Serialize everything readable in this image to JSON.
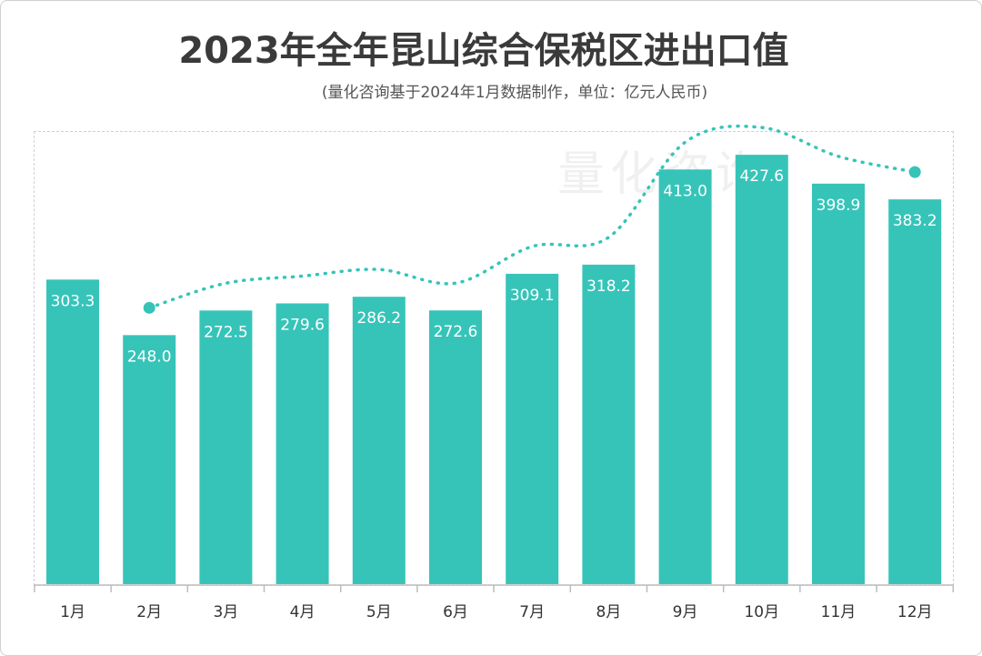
{
  "chart_data": {
    "type": "bar",
    "title": "2023年全年昆山综合保税区进出口值",
    "subtitle": "(量化咨询基于2024年1月数据制作，单位：亿元人民币)",
    "watermark": "量化咨询",
    "categories": [
      "1月",
      "2月",
      "3月",
      "4月",
      "5月",
      "6月",
      "7月",
      "8月",
      "9月",
      "10月",
      "11月",
      "12月"
    ],
    "values": [
      303.3,
      248.0,
      272.5,
      279.6,
      286.2,
      272.6,
      309.1,
      318.2,
      413.0,
      427.6,
      398.9,
      383.2
    ],
    "value_labels": [
      "303.3",
      "248.0",
      "272.5",
      "279.6",
      "286.2",
      "272.6",
      "309.1",
      "318.2",
      "413.0",
      "427.6",
      "398.9",
      "383.2"
    ],
    "trend_line": true,
    "ylim": [
      0,
      450
    ],
    "bar_color": "#36C4B9",
    "trend_color": "#36C4B9",
    "label_color": "#ffffff",
    "axis_label_color": "#333333",
    "grid": false,
    "legend": "none"
  }
}
